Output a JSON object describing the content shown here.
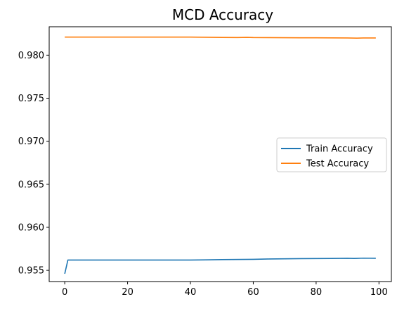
{
  "chart_data": {
    "type": "line",
    "title": "MCD Accuracy",
    "xlabel": "",
    "ylabel": "",
    "xlim": [
      -4.95,
      103.95
    ],
    "ylim": [
      0.9537,
      0.9833
    ],
    "x_ticks": [
      0,
      20,
      40,
      60,
      80,
      100
    ],
    "y_ticks": [
      0.955,
      0.96,
      0.965,
      0.97,
      0.975,
      0.98
    ],
    "y_tick_labels": [
      "0.955",
      "0.960",
      "0.965",
      "0.970",
      "0.975",
      "0.980"
    ],
    "grid": false,
    "legend_position": "center-right",
    "series": [
      {
        "name": "Train Accuracy",
        "color": "#1f77b4",
        "points": [
          [
            0,
            0.9546
          ],
          [
            1,
            0.9562
          ],
          [
            10,
            0.9562
          ],
          [
            20,
            0.9562
          ],
          [
            30,
            0.9562
          ],
          [
            40,
            0.9562
          ],
          [
            45,
            0.95622
          ],
          [
            50,
            0.95625
          ],
          [
            60,
            0.95628
          ],
          [
            65,
            0.95632
          ],
          [
            70,
            0.95634
          ],
          [
            75,
            0.95636
          ],
          [
            80,
            0.95637
          ],
          [
            85,
            0.95638
          ],
          [
            90,
            0.9564
          ],
          [
            92,
            0.95638
          ],
          [
            95,
            0.95642
          ],
          [
            99,
            0.9564
          ]
        ]
      },
      {
        "name": "Test Accuracy",
        "color": "#ff7f0e",
        "points": [
          [
            0,
            0.9821
          ],
          [
            10,
            0.9821
          ],
          [
            20,
            0.9821
          ],
          [
            30,
            0.9821
          ],
          [
            40,
            0.9821
          ],
          [
            45,
            0.98208
          ],
          [
            50,
            0.98206
          ],
          [
            55,
            0.98205
          ],
          [
            58,
            0.98207
          ],
          [
            60,
            0.98205
          ],
          [
            65,
            0.98204
          ],
          [
            70,
            0.98203
          ],
          [
            75,
            0.98202
          ],
          [
            80,
            0.98202
          ],
          [
            85,
            0.98201
          ],
          [
            90,
            0.982
          ],
          [
            93,
            0.98198
          ],
          [
            95,
            0.982
          ],
          [
            99,
            0.982
          ]
        ]
      }
    ]
  }
}
